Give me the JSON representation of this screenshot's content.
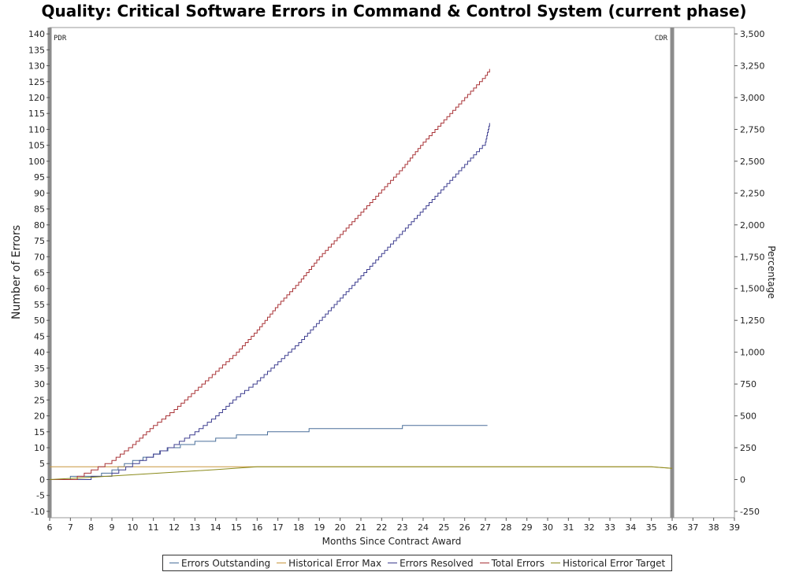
{
  "chart_data": {
    "type": "line",
    "title": "Quality: Critical Software Errors in Command & Control System (current phase)",
    "xlabel": "Months Since Contract Award",
    "ylabel": "Number of Errors",
    "y2label": "Percentage",
    "xlim": [
      6,
      39
    ],
    "ylim": [
      -12,
      142
    ],
    "y2lim": [
      -300,
      3550
    ],
    "x_ticks": [
      6,
      7,
      8,
      9,
      10,
      11,
      12,
      13,
      14,
      15,
      16,
      17,
      18,
      19,
      20,
      21,
      22,
      23,
      24,
      25,
      26,
      27,
      28,
      29,
      30,
      31,
      32,
      33,
      34,
      35,
      36,
      37,
      38,
      39
    ],
    "y_ticks": [
      -10,
      -5,
      0,
      5,
      10,
      15,
      20,
      25,
      30,
      35,
      40,
      45,
      50,
      55,
      60,
      65,
      70,
      75,
      80,
      85,
      90,
      95,
      100,
      105,
      110,
      115,
      120,
      125,
      130,
      135,
      140
    ],
    "y2_ticks": [
      -250,
      0,
      250,
      500,
      750,
      1000,
      1250,
      1500,
      1750,
      2000,
      2250,
      2500,
      2750,
      3000,
      3250,
      3500
    ],
    "y2_tick_labels": [
      "-250",
      "0",
      "250",
      "500",
      "750",
      "1,000",
      "1,250",
      "1,500",
      "1,750",
      "2,000",
      "2,250",
      "2,500",
      "2,750",
      "3,000",
      "3,250",
      "3,500"
    ],
    "grid": false,
    "legend_position": "bottom",
    "markers": [
      {
        "label": "PDR",
        "x": 6
      },
      {
        "label": "CDR",
        "x": 36
      }
    ],
    "series": [
      {
        "name": "Errors Outstanding",
        "color": "#4a6f9a",
        "step": true,
        "points": [
          [
            6,
            0
          ],
          [
            6.5,
            0
          ],
          [
            7,
            1
          ],
          [
            8,
            1
          ],
          [
            8.5,
            2
          ],
          [
            9,
            3
          ],
          [
            9.3,
            4
          ],
          [
            9.6,
            5
          ],
          [
            10,
            6
          ],
          [
            10.5,
            7
          ],
          [
            11,
            8
          ],
          [
            11.3,
            9
          ],
          [
            11.7,
            10
          ],
          [
            12.3,
            11
          ],
          [
            13,
            12
          ],
          [
            14,
            13
          ],
          [
            15,
            14
          ],
          [
            16.5,
            15
          ],
          [
            18.5,
            16
          ],
          [
            23,
            17
          ],
          [
            27.1,
            17
          ]
        ]
      },
      {
        "name": "Historical Error Max",
        "color": "#c8963c",
        "step": false,
        "points": [
          [
            6,
            4
          ],
          [
            16,
            4
          ],
          [
            27,
            4
          ],
          [
            35,
            4
          ],
          [
            36,
            3.5
          ]
        ]
      },
      {
        "name": "Errors Resolved",
        "color": "#3d3d8f",
        "step": true,
        "points": [
          [
            6,
            0
          ],
          [
            7,
            0
          ],
          [
            8,
            1
          ],
          [
            9,
            2
          ],
          [
            10,
            5
          ],
          [
            11,
            8
          ],
          [
            12,
            11
          ],
          [
            13,
            15
          ],
          [
            14,
            20
          ],
          [
            15,
            26
          ],
          [
            16,
            31
          ],
          [
            17,
            37
          ],
          [
            18,
            43
          ],
          [
            19,
            50
          ],
          [
            20,
            57
          ],
          [
            21,
            64
          ],
          [
            22,
            71
          ],
          [
            23,
            78
          ],
          [
            24,
            85
          ],
          [
            25,
            92
          ],
          [
            26,
            99
          ],
          [
            27,
            106
          ],
          [
            27.2,
            112
          ]
        ]
      },
      {
        "name": "Total Errors",
        "color": "#a83236",
        "step": true,
        "points": [
          [
            6,
            0
          ],
          [
            7,
            0
          ],
          [
            8,
            3
          ],
          [
            9,
            6
          ],
          [
            10,
            11
          ],
          [
            11,
            17
          ],
          [
            12,
            22
          ],
          [
            13,
            28
          ],
          [
            14,
            34
          ],
          [
            15,
            40
          ],
          [
            16,
            47
          ],
          [
            17,
            55
          ],
          [
            18,
            62
          ],
          [
            19,
            70
          ],
          [
            20,
            77
          ],
          [
            21,
            84
          ],
          [
            22,
            91
          ],
          [
            23,
            98
          ],
          [
            24,
            106
          ],
          [
            25,
            113
          ],
          [
            26,
            120
          ],
          [
            27,
            127
          ],
          [
            27.2,
            129
          ]
        ]
      },
      {
        "name": "Historical Error Target",
        "color": "#8a8a1a",
        "step": false,
        "points": [
          [
            6,
            0
          ],
          [
            8,
            0.7
          ],
          [
            10,
            1.5
          ],
          [
            12,
            2.3
          ],
          [
            14,
            3.1
          ],
          [
            16,
            4
          ],
          [
            27,
            4
          ],
          [
            35,
            4
          ],
          [
            36,
            3.5
          ]
        ]
      }
    ]
  }
}
